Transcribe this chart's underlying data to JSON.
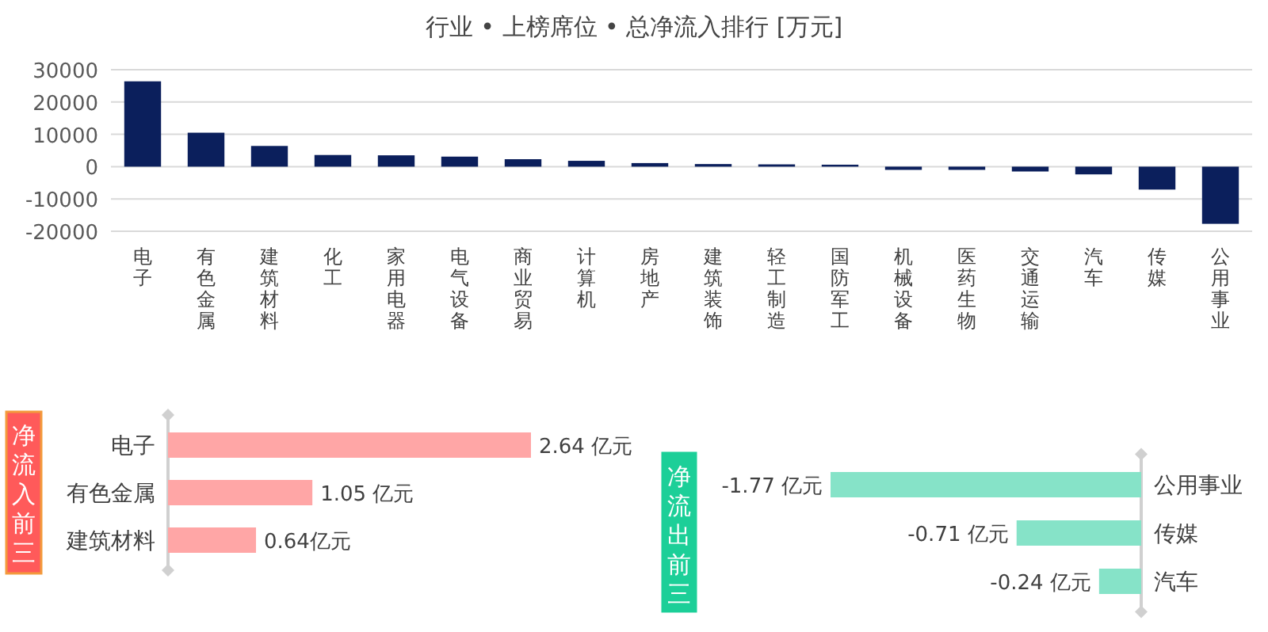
{
  "chart_data": [
    {
      "type": "bar",
      "title": "行业 • 上榜席位 • 总净流入排行 [万元]",
      "categories": [
        "电子",
        "有色金属",
        "建筑材料",
        "化工",
        "家用电器",
        "电气设备",
        "商业贸易",
        "计算机",
        "房地产",
        "建筑装饰",
        "轻工制造",
        "国防军工",
        "机械设备",
        "医药生物",
        "交通运输",
        "汽车",
        "传媒",
        "公用事业"
      ],
      "values": [
        26400,
        10500,
        6400,
        3600,
        3500,
        3100,
        2300,
        1800,
        1100,
        800,
        700,
        600,
        -1000,
        -1000,
        -1500,
        -2400,
        -7100,
        -17700
      ],
      "color": "#0b1f5c",
      "ylim": [
        -20000,
        30000
      ],
      "yticks": [
        -20000,
        -10000,
        0,
        10000,
        20000,
        30000
      ],
      "grid": "y"
    },
    {
      "type": "bar",
      "orientation": "horizontal",
      "title": "净流入前三",
      "categories": [
        "电子",
        "有色金属",
        "建筑材料"
      ],
      "values": [
        2.64,
        1.05,
        0.64
      ],
      "value_labels": [
        "2.64 亿元",
        "1.05 亿元",
        "0.64亿元"
      ],
      "color": "#ffa6a6"
    },
    {
      "type": "bar",
      "orientation": "horizontal",
      "title": "净流出前三",
      "categories": [
        "公用事业",
        "传媒",
        "汽车"
      ],
      "values": [
        -1.77,
        -0.71,
        -0.24
      ],
      "value_labels": [
        "-1.77 亿元",
        "-0.71 亿元",
        "-0.24 亿元"
      ],
      "color": "#86e3c8"
    }
  ]
}
